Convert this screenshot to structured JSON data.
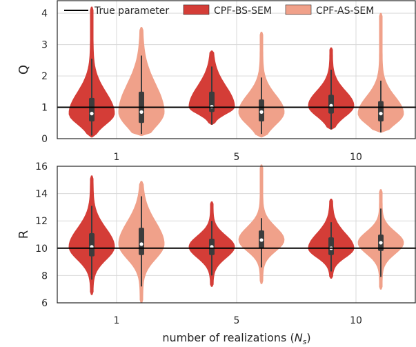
{
  "chart_data": [
    {
      "type": "violin",
      "ylabel": "Q",
      "ylim": [
        0,
        4.4
      ],
      "yticks": [
        "0",
        "1",
        "2",
        "3",
        "4"
      ],
      "categories": [
        "1",
        "5",
        "10"
      ],
      "true_parameter": 1.0,
      "grid": true,
      "legend": {
        "placement": "top",
        "entries": [
          "True parameter",
          "CPF-BS-SEM",
          "CPF-AS-SEM"
        ]
      },
      "series": [
        {
          "name": "CPF-BS-SEM",
          "color": "#d43d37",
          "violins": [
            {
              "category": "1",
              "min": 0.05,
              "max": 4.2,
              "q1": 0.55,
              "median": 0.8,
              "q3": 1.3,
              "whisker_low": 0.1,
              "whisker_high": 2.55
            },
            {
              "category": "5",
              "min": 0.45,
              "max": 2.8,
              "q1": 0.85,
              "median": 1.02,
              "q3": 1.5,
              "whisker_low": 0.45,
              "whisker_high": 2.3
            },
            {
              "category": "10",
              "min": 0.3,
              "max": 2.9,
              "q1": 0.8,
              "median": 1.05,
              "q3": 1.4,
              "whisker_low": 0.3,
              "whisker_high": 2.2
            }
          ]
        },
        {
          "name": "CPF-AS-SEM",
          "color": "#f0a18a",
          "violins": [
            {
              "category": "1",
              "min": 0.1,
              "max": 3.55,
              "q1": 0.5,
              "median": 0.85,
              "q3": 1.5,
              "whisker_low": 0.15,
              "whisker_high": 2.65
            },
            {
              "category": "5",
              "min": 0.05,
              "max": 3.4,
              "q1": 0.55,
              "median": 0.85,
              "q3": 1.25,
              "whisker_low": 0.15,
              "whisker_high": 1.95
            },
            {
              "category": "10",
              "min": 0.2,
              "max": 4.0,
              "q1": 0.55,
              "median": 0.8,
              "q3": 1.2,
              "whisker_low": 0.2,
              "whisker_high": 1.85
            }
          ]
        }
      ]
    },
    {
      "type": "violin",
      "ylabel": "R",
      "xlabel": "number of realizations (N_s)",
      "ylim": [
        6,
        16
      ],
      "yticks": [
        "6",
        "8",
        "10",
        "12",
        "14",
        "16"
      ],
      "categories": [
        "1",
        "5",
        "10"
      ],
      "true_parameter": 10.0,
      "grid": true,
      "series": [
        {
          "name": "CPF-BS-SEM",
          "color": "#d43d37",
          "violins": [
            {
              "category": "1",
              "min": 6.6,
              "max": 15.3,
              "q1": 9.4,
              "median": 10.1,
              "q3": 11.1,
              "whisker_low": 7.7,
              "whisker_high": 13.1
            },
            {
              "category": "5",
              "min": 7.2,
              "max": 13.4,
              "q1": 9.5,
              "median": 10.1,
              "q3": 10.7,
              "whisker_low": 8.0,
              "whisker_high": 12.0
            },
            {
              "category": "10",
              "min": 7.8,
              "max": 13.6,
              "q1": 9.5,
              "median": 10.0,
              "q3": 10.8,
              "whisker_low": 8.3,
              "whisker_high": 11.9
            }
          ]
        },
        {
          "name": "CPF-AS-SEM",
          "color": "#f0a18a",
          "violins": [
            {
              "category": "1",
              "min": 6.0,
              "max": 14.9,
              "q1": 9.5,
              "median": 10.3,
              "q3": 11.5,
              "whisker_low": 7.2,
              "whisker_high": 13.8
            },
            {
              "category": "5",
              "min": 7.4,
              "max": 16.1,
              "q1": 10.0,
              "median": 10.6,
              "q3": 11.3,
              "whisker_low": 8.6,
              "whisker_high": 12.2
            },
            {
              "category": "10",
              "min": 7.0,
              "max": 14.3,
              "q1": 9.8,
              "median": 10.4,
              "q3": 11.0,
              "whisker_low": 7.9,
              "whisker_high": 12.9
            }
          ]
        }
      ]
    }
  ],
  "colors": {
    "true_line": "#000000",
    "box": "#3c3c3c",
    "median_dot": "#ffffff",
    "grid": "#d9d9d9",
    "axes_edge": "#262626"
  }
}
